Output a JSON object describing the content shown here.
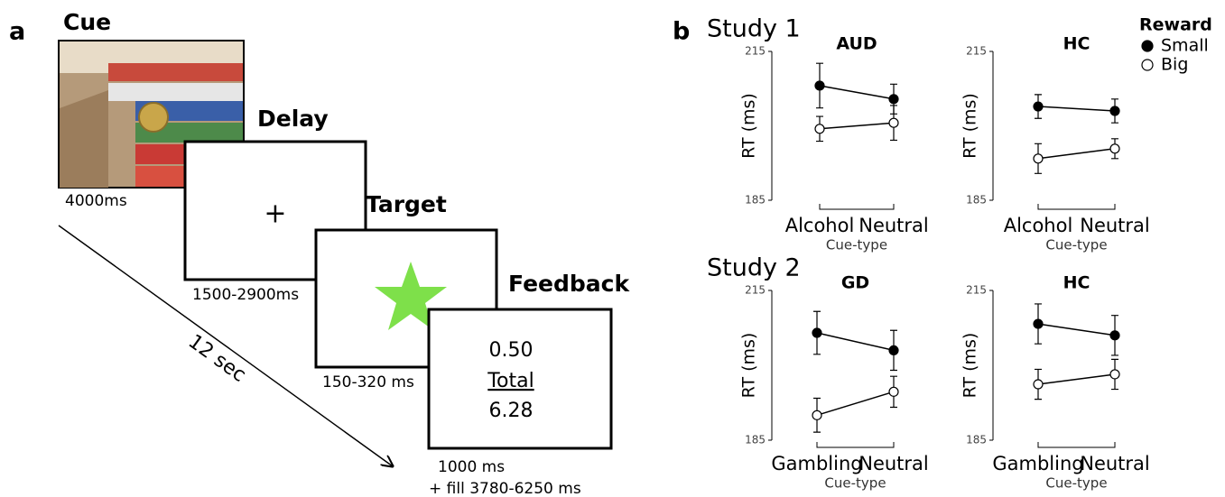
{
  "panel_a": {
    "label": "a",
    "cue": {
      "title": "Cue",
      "time": "4000ms"
    },
    "delay": {
      "title": "Delay",
      "symbol": "+",
      "time": "1500-2900ms"
    },
    "target": {
      "title": "Target",
      "time": "150-320 ms"
    },
    "feedback": {
      "title": "Feedback",
      "lines": [
        "0.50",
        "Total",
        "6.28"
      ],
      "time": [
        "1000 ms",
        "+ fill 3780-6250 ms"
      ]
    },
    "duration": "12 sec"
  },
  "panel_b": {
    "label": "b",
    "studies": [
      "Study 1",
      "Study 2"
    ]
  },
  "chart_data": [
    {
      "type": "line",
      "title": "AUD",
      "legend_title": "Reward",
      "categories": [
        "Alcohol",
        "Neutral"
      ],
      "x_label": "Cue-type",
      "y_label": "RT (ms)",
      "ylim": [
        185,
        215
      ],
      "yticks": [
        185,
        215
      ],
      "series": [
        {
          "name": "Small",
          "color": "#000000",
          "marker_fill": "#000000",
          "values": [
            208.1,
            205.4
          ],
          "errors": [
            4.5,
            3.0
          ]
        },
        {
          "name": "Big",
          "color": "#000000",
          "marker_fill": "#ffffff",
          "values": [
            199.4,
            200.6
          ],
          "errors": [
            2.5,
            3.5
          ]
        }
      ]
    },
    {
      "type": "line",
      "title": "HC",
      "categories": [
        "Alcohol",
        "Neutral"
      ],
      "x_label": "Cue-type",
      "y_label": "RT (ms)",
      "ylim": [
        185,
        215
      ],
      "yticks": [
        185,
        215
      ],
      "series": [
        {
          "name": "Small",
          "color": "#000000",
          "marker_fill": "#000000",
          "values": [
            203.9,
            203.0
          ],
          "errors": [
            2.4,
            2.4
          ]
        },
        {
          "name": "Big",
          "color": "#000000",
          "marker_fill": "#ffffff",
          "values": [
            193.4,
            195.4
          ],
          "errors": [
            3.0,
            2.0
          ]
        }
      ]
    },
    {
      "type": "line",
      "title": "GD",
      "categories": [
        "Gambling",
        "Neutral"
      ],
      "x_label": "Cue-type",
      "y_label": "RT (ms)",
      "ylim": [
        185,
        215
      ],
      "yticks": [
        185,
        215
      ],
      "series": [
        {
          "name": "Small",
          "color": "#000000",
          "marker_fill": "#000000",
          "values": [
            206.5,
            203.0
          ],
          "errors": [
            4.3,
            4.0
          ]
        },
        {
          "name": "Big",
          "color": "#000000",
          "marker_fill": "#ffffff",
          "values": [
            190.0,
            194.7
          ],
          "errors": [
            3.4,
            3.1
          ]
        }
      ]
    },
    {
      "type": "line",
      "title": "HC",
      "categories": [
        "Gambling",
        "Neutral"
      ],
      "x_label": "Cue-type",
      "y_label": "RT (ms)",
      "ylim": [
        185,
        215
      ],
      "yticks": [
        185,
        215
      ],
      "series": [
        {
          "name": "Small",
          "color": "#000000",
          "marker_fill": "#000000",
          "values": [
            208.3,
            206.0
          ],
          "errors": [
            4.0,
            4.0
          ]
        },
        {
          "name": "Big",
          "color": "#000000",
          "marker_fill": "#ffffff",
          "values": [
            196.2,
            198.2
          ],
          "errors": [
            3.0,
            3.0
          ]
        }
      ]
    }
  ]
}
